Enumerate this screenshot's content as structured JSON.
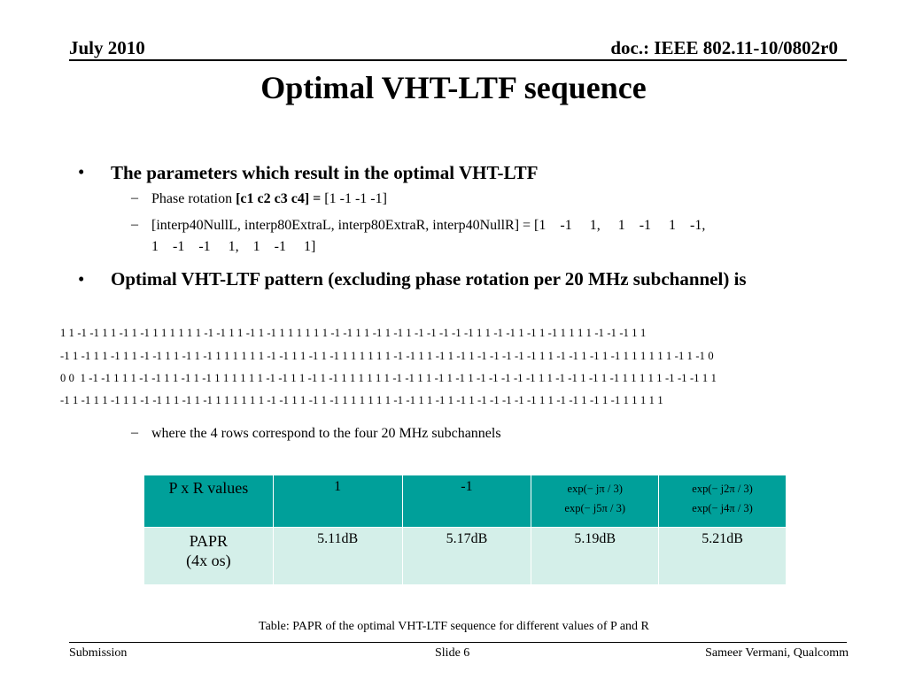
{
  "header": {
    "date": "July 2010",
    "doc": "doc.: IEEE 802.11-10/0802r0"
  },
  "title": "Optimal VHT-LTF sequence",
  "bullets": [
    {
      "symbol": "•",
      "text": "The parameters which result in the optimal VHT-LTF",
      "sub": [
        {
          "symbol": "–",
          "label": "Phase rotation ",
          "bold": "[c1 c2 c3 c4] =",
          "value": " [1 -1 -1 -1]"
        },
        {
          "symbol": "–",
          "line1": "[interp40NullL, interp80ExtraL, interp80ExtraR, interp40NullR] = [1    -1     1,     1    -1     1    -1,",
          "line2": "1    -1    -1     1,    1    -1     1]"
        }
      ]
    },
    {
      "symbol": "•",
      "text": "Optimal VHT-LTF pattern (excluding phase rotation per 20 MHz subchannel) is"
    }
  ],
  "sequence_rows": [
    "1 1 -1 -1 1 1 -1 1 -1 1 1 1 1 1 1 -1 -1 1 1 -1 1 -1 1 1 1 1 1 1 -1 -1 1 1 -1 1 -1 1 -1 -1 -1 -1 -1 1 1 -1 -1 1 -1 1 -1 1 1 1 1 -1 -1 -1 1 1",
    "-1 1 -1 1 1 -1 1 1 -1 -1 1 1 -1 1 -1 1 1 1 1 1 1 -1 -1 1 1 -1 1 -1 1 1 1 1 1 1 -1 -1 1 1 -1 1 -1 1 -1 -1 -1 -1 -1 1 1 -1 -1 1 -1 1 -1 1 1 1 1 1 1 -1 1 -1 0",
    "0 0  1 -1 -1 1 1 1 -1 -1 1 1 -1 1 -1 1 1 1 1 1 1 -1 -1 1 1 -1 1 -1 1 1 1 1 1 1 -1 -1 1 1 -1 1 -1 1 -1 -1 -1 -1 -1 1 1 -1 -1 1 -1 1 -1 1 1 1 1 1 -1 -1 -1 1 1",
    "-1 1 -1 1 1 -1 1 1 -1 -1 1 1 -1 1 -1 1 1 1 1 1 1 -1 -1 1 1 -1 1 -1 1 1 1 1 1 1 -1 -1 1 1 -1 1 -1 1 -1 -1 -1 -1 -1 1 1 -1 -1 1 -1 1 -1 1 1 1 1 1"
  ],
  "rows_note": {
    "symbol": "–",
    "text": "where the 4 rows correspond to the four 20 MHz subchannels"
  },
  "table": {
    "head": {
      "label": "P x R  values",
      "c1": "1",
      "c2": "-1",
      "c3a": "exp(− jπ / 3)",
      "c3b": "exp(− j5π / 3)",
      "c4a": "exp(− j2π / 3)",
      "c4b": "exp(− j4π / 3)"
    },
    "papr": {
      "label1": "PAPR",
      "label2": "(4x os)",
      "c1": "5.11dB",
      "c2": "5.17dB",
      "c3": "5.19dB",
      "c4": "5.21dB"
    },
    "colors": {
      "header_bg": "#00a09a",
      "body_bg": "#d4efe9"
    }
  },
  "caption": "Table: PAPR of the optimal VHT-LTF sequence for different values of  P and R",
  "footer": {
    "left": "Submission",
    "center": "Slide 6",
    "right": "Sameer Vermani, Qualcomm"
  }
}
